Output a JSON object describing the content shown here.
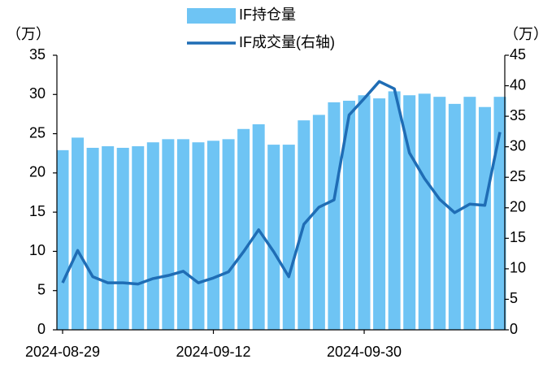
{
  "chart_data": {
    "type": "bar_line",
    "y_unit": "（万）",
    "y2_unit": "（万）",
    "categories": [
      "2024-08-29",
      null,
      null,
      null,
      null,
      null,
      null,
      null,
      null,
      null,
      "2024-09-12",
      null,
      null,
      null,
      null,
      null,
      null,
      null,
      null,
      null,
      "2024-09-30",
      null,
      null,
      null,
      null,
      null,
      null,
      null,
      null,
      null
    ],
    "series": [
      {
        "name": "IF持仓量",
        "kind": "bar",
        "color": "#6ec4f4",
        "axis": "y",
        "values": [
          22.9,
          24.5,
          23.2,
          23.4,
          23.2,
          23.4,
          23.9,
          24.3,
          24.3,
          23.9,
          24.1,
          24.3,
          25.6,
          26.2,
          23.6,
          23.6,
          26.7,
          27.4,
          29.0,
          29.2,
          29.9,
          29.5,
          30.4,
          29.9,
          30.1,
          29.7,
          28.8,
          29.7,
          28.4,
          29.7
        ]
      },
      {
        "name": "IF成交量(右轴)",
        "kind": "line",
        "color": "#1f6db5",
        "axis": "y2",
        "values": [
          7.7,
          13.0,
          8.7,
          7.7,
          7.7,
          7.5,
          8.4,
          8.9,
          9.6,
          7.7,
          8.5,
          9.5,
          12.8,
          16.4,
          12.8,
          8.7,
          17.3,
          20.1,
          21.3,
          35.2,
          37.9,
          40.7,
          39.5,
          29.0,
          24.8,
          21.4,
          19.2,
          20.6,
          20.4,
          32.4
        ]
      }
    ],
    "ylim": [
      0,
      35
    ],
    "yticks": [
      0,
      5,
      10,
      15,
      20,
      25,
      30,
      35
    ],
    "y2lim": [
      0,
      45
    ],
    "y2ticks": [
      0,
      5,
      10,
      15,
      20,
      25,
      30,
      35,
      40,
      45
    ],
    "grid": false
  }
}
